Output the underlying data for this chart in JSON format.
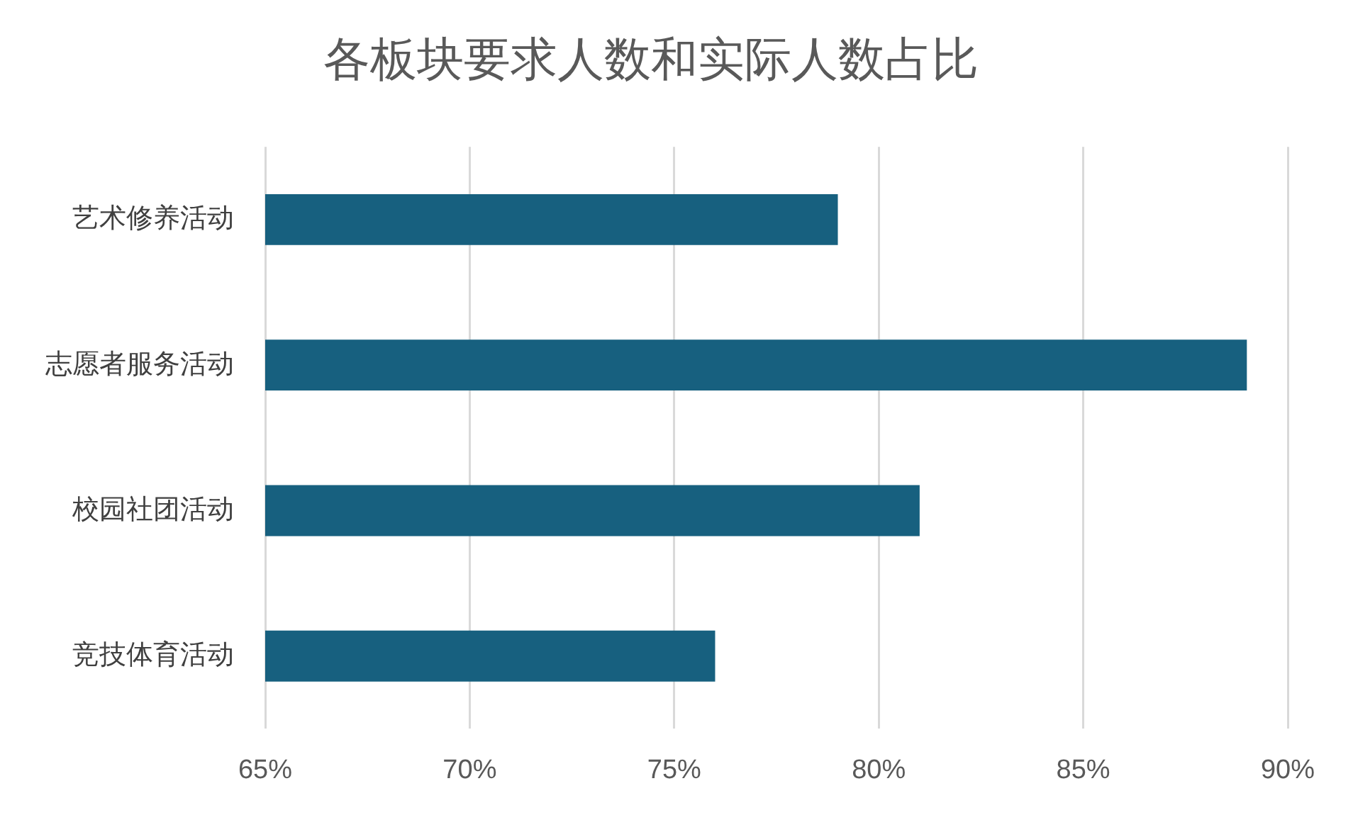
{
  "chart_data": {
    "type": "bar",
    "title": "各板块要求人数和实际人数占比",
    "orientation": "horizontal",
    "categories": [
      "艺术修养活动",
      "志愿者服务活动",
      "校园社团活动",
      "竞技体育活动"
    ],
    "values": [
      79,
      89,
      81,
      76
    ],
    "color": "#17607f",
    "xlim": [
      65,
      90
    ],
    "xticks": [
      {
        "value": 65,
        "label": "65%"
      },
      {
        "value": 70,
        "label": "70%"
      },
      {
        "value": 75,
        "label": "75%"
      },
      {
        "value": 80,
        "label": "80%"
      },
      {
        "value": 85,
        "label": "85%"
      },
      {
        "value": 90,
        "label": "90%"
      }
    ],
    "grid": "x"
  }
}
